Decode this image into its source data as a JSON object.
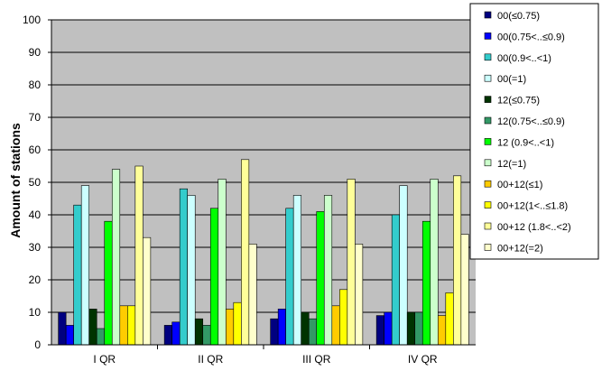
{
  "chart_data": {
    "type": "bar",
    "ylabel": "Amount of stations",
    "xlabel": "",
    "ylim": [
      0,
      100
    ],
    "yticks": [
      "0",
      "10",
      "20",
      "30",
      "40",
      "50",
      "60",
      "70",
      "80",
      "90",
      "100"
    ],
    "grid": true,
    "legend_position": "right",
    "plot_background": "#c0c0c0",
    "categories": [
      "I QR",
      "II QR",
      "III QR",
      "IV QR"
    ],
    "series": [
      {
        "name": "00(≤0.75)",
        "color": "#000080",
        "values": [
          10,
          6,
          8,
          9
        ]
      },
      {
        "name": "00(0.75<..≤0.9)",
        "color": "#0000ff",
        "values": [
          6,
          7,
          11,
          10
        ]
      },
      {
        "name": "00(0.9<..<1)",
        "color": "#33cccc",
        "values": [
          43,
          48,
          42,
          40
        ]
      },
      {
        "name": "00(=1)",
        "color": "#ccffff",
        "values": [
          49,
          46,
          46,
          49
        ]
      },
      {
        "name": "12(≤0.75)",
        "color": "#003300",
        "values": [
          11,
          8,
          10,
          10
        ]
      },
      {
        "name": "12(0.75<..≤0.9)",
        "color": "#339966",
        "values": [
          5,
          6,
          8,
          10
        ]
      },
      {
        "name": "12 (0.9<..<1)",
        "color": "#00ff00",
        "values": [
          38,
          42,
          41,
          38
        ]
      },
      {
        "name": "12(=1)",
        "color": "#ccffcc",
        "values": [
          54,
          51,
          46,
          51
        ]
      },
      {
        "name": "00+12(≤1)",
        "color": "#ffcc00",
        "values": [
          12,
          11,
          12,
          9
        ]
      },
      {
        "name": "00+12(1<..≤1.8)",
        "color": "#ffff00",
        "values": [
          12,
          13,
          17,
          16
        ]
      },
      {
        "name": "00+12 (1.8<..<2)",
        "color": "#ffff99",
        "values": [
          55,
          57,
          51,
          52
        ]
      },
      {
        "name": "00+12(=2)",
        "color": "#ffffcc",
        "values": [
          33,
          31,
          31,
          34
        ]
      }
    ]
  }
}
